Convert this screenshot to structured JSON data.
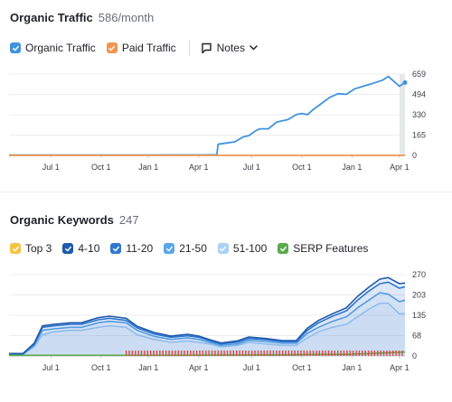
{
  "traffic": {
    "title": "Organic Traffic",
    "value": "586/month",
    "legend": [
      {
        "label": "Organic Traffic",
        "color": "#3f93dc",
        "checked": true
      },
      {
        "label": "Paid Traffic",
        "color": "#f0944f",
        "checked": true
      }
    ],
    "notes_label": "Notes",
    "chart_data": {
      "type": "line",
      "x_tick_labels": [
        "Jul 1",
        "Oct 1",
        "Jan 1",
        "Apr 1",
        "Jul 1",
        "Oct 1",
        "Jan 1",
        "Apr 1"
      ],
      "y_tick_labels": [
        "659",
        "494",
        "330",
        "165",
        "0"
      ],
      "ylim": [
        0,
        659
      ],
      "grid": true,
      "series": [
        {
          "name": "Organic Traffic",
          "color": "#3f93dc",
          "points": [
            [
              0,
              3
            ],
            [
              1,
              3
            ],
            [
              2,
              3
            ],
            [
              3,
              3
            ],
            [
              4,
              3
            ],
            [
              5,
              3
            ],
            [
              6,
              4
            ],
            [
              7,
              4
            ],
            [
              7.45,
              5
            ],
            [
              7.5,
              90
            ],
            [
              7.8,
              100
            ],
            [
              8.1,
              110
            ],
            [
              8.4,
              150
            ],
            [
              8.6,
              160
            ],
            [
              8.85,
              200
            ],
            [
              9.0,
              215
            ],
            [
              9.3,
              215
            ],
            [
              9.6,
              270
            ],
            [
              10.0,
              290
            ],
            [
              10.3,
              330
            ],
            [
              10.5,
              340
            ],
            [
              10.7,
              330
            ],
            [
              10.9,
              370
            ],
            [
              11.2,
              420
            ],
            [
              11.5,
              470
            ],
            [
              11.8,
              500
            ],
            [
              12.1,
              495
            ],
            [
              12.4,
              540
            ],
            [
              12.7,
              560
            ],
            [
              13.0,
              580
            ],
            [
              13.4,
              610
            ],
            [
              13.6,
              640
            ],
            [
              13.8,
              600
            ],
            [
              14.0,
              560
            ],
            [
              14.2,
              590
            ]
          ]
        },
        {
          "name": "Paid Traffic",
          "color": "#f0944f",
          "points": [
            [
              0,
              0
            ],
            [
              14.2,
              0
            ]
          ]
        }
      ]
    }
  },
  "keywords": {
    "title": "Organic Keywords",
    "value": "247",
    "legend": [
      {
        "label": "Top 3",
        "color": "#f6c343",
        "checked": false
      },
      {
        "label": "4-10",
        "color": "#1f5aad",
        "checked": true
      },
      {
        "label": "11-20",
        "color": "#2f79d3",
        "checked": true
      },
      {
        "label": "21-50",
        "color": "#5aa6ea",
        "checked": true
      },
      {
        "label": "51-100",
        "color": "#a9d1f5",
        "checked": true
      },
      {
        "label": "SERP Features",
        "color": "#5aa94c",
        "checked": true
      }
    ],
    "chart_data": {
      "type": "area",
      "stacked": true,
      "x_tick_labels": [
        "Jul 1",
        "Oct 1",
        "Jan 1",
        "Apr 1",
        "Jul 1",
        "Oct 1",
        "Jan 1",
        "Apr 1"
      ],
      "y_tick_labels": [
        "270",
        "203",
        "135",
        "68",
        "0"
      ],
      "ylim": [
        0,
        270
      ],
      "grid": true,
      "series": [
        {
          "name": "51-100",
          "color": "#a9d1f5",
          "points": [
            [
              0,
              5
            ],
            [
              0.5,
              5
            ],
            [
              0.9,
              30
            ],
            [
              1.2,
              70
            ],
            [
              1.6,
              80
            ],
            [
              2.2,
              85
            ],
            [
              2.6,
              85
            ],
            [
              3.2,
              95
            ],
            [
              3.6,
              100
            ],
            [
              4.2,
              95
            ],
            [
              4.6,
              70
            ],
            [
              5.2,
              55
            ],
            [
              5.8,
              45
            ],
            [
              6.4,
              50
            ],
            [
              6.8,
              45
            ],
            [
              7.2,
              40
            ],
            [
              7.6,
              30
            ],
            [
              8.2,
              35
            ],
            [
              8.6,
              45
            ],
            [
              9.2,
              40
            ],
            [
              9.8,
              35
            ],
            [
              10.3,
              35
            ],
            [
              10.7,
              60
            ],
            [
              11.1,
              80
            ],
            [
              11.6,
              95
            ],
            [
              12.1,
              105
            ],
            [
              12.5,
              130
            ],
            [
              12.9,
              155
            ],
            [
              13.3,
              175
            ],
            [
              13.6,
              175
            ],
            [
              14.0,
              140
            ],
            [
              14.2,
              140
            ]
          ]
        },
        {
          "name": "21-50",
          "color": "#5aa6ea",
          "points": [
            [
              0,
              6
            ],
            [
              0.5,
              6
            ],
            [
              0.9,
              35
            ],
            [
              1.2,
              85
            ],
            [
              1.6,
              90
            ],
            [
              2.2,
              95
            ],
            [
              2.6,
              95
            ],
            [
              3.2,
              110
            ],
            [
              3.6,
              115
            ],
            [
              4.2,
              110
            ],
            [
              4.6,
              85
            ],
            [
              5.2,
              65
            ],
            [
              5.8,
              55
            ],
            [
              6.4,
              60
            ],
            [
              6.8,
              55
            ],
            [
              7.2,
              45
            ],
            [
              7.6,
              35
            ],
            [
              8.2,
              40
            ],
            [
              8.6,
              52
            ],
            [
              9.2,
              48
            ],
            [
              9.8,
              42
            ],
            [
              10.3,
              42
            ],
            [
              10.7,
              75
            ],
            [
              11.1,
              95
            ],
            [
              11.6,
              115
            ],
            [
              12.1,
              130
            ],
            [
              12.5,
              160
            ],
            [
              12.9,
              185
            ],
            [
              13.3,
              210
            ],
            [
              13.6,
              205
            ],
            [
              14.0,
              180
            ],
            [
              14.2,
              185
            ]
          ]
        },
        {
          "name": "11-20",
          "color": "#2f79d3",
          "points": [
            [
              0,
              7
            ],
            [
              0.5,
              7
            ],
            [
              0.9,
              40
            ],
            [
              1.2,
              95
            ],
            [
              1.6,
              100
            ],
            [
              2.2,
              105
            ],
            [
              2.6,
              105
            ],
            [
              3.2,
              120
            ],
            [
              3.6,
              125
            ],
            [
              4.2,
              118
            ],
            [
              4.6,
              93
            ],
            [
              5.2,
              73
            ],
            [
              5.8,
              62
            ],
            [
              6.4,
              67
            ],
            [
              6.8,
              62
            ],
            [
              7.2,
              50
            ],
            [
              7.6,
              40
            ],
            [
              8.2,
              46
            ],
            [
              8.6,
              58
            ],
            [
              9.2,
              54
            ],
            [
              9.8,
              47
            ],
            [
              10.3,
              47
            ],
            [
              10.7,
              85
            ],
            [
              11.1,
              110
            ],
            [
              11.6,
              132
            ],
            [
              12.1,
              150
            ],
            [
              12.5,
              185
            ],
            [
              12.9,
              215
            ],
            [
              13.3,
              240
            ],
            [
              13.6,
              245
            ],
            [
              14.0,
              225
            ],
            [
              14.2,
              230
            ]
          ]
        },
        {
          "name": "4-10",
          "color": "#1f5aad",
          "points": [
            [
              0,
              8
            ],
            [
              0.5,
              8
            ],
            [
              0.9,
              42
            ],
            [
              1.2,
              100
            ],
            [
              1.6,
              105
            ],
            [
              2.2,
              110
            ],
            [
              2.6,
              110
            ],
            [
              3.2,
              127
            ],
            [
              3.6,
              132
            ],
            [
              4.2,
              125
            ],
            [
              4.6,
              98
            ],
            [
              5.2,
              78
            ],
            [
              5.8,
              66
            ],
            [
              6.4,
              72
            ],
            [
              6.8,
              66
            ],
            [
              7.2,
              54
            ],
            [
              7.6,
              43
            ],
            [
              8.2,
              50
            ],
            [
              8.6,
              63
            ],
            [
              9.2,
              58
            ],
            [
              9.8,
              51
            ],
            [
              10.3,
              51
            ],
            [
              10.7,
              92
            ],
            [
              11.1,
              118
            ],
            [
              11.6,
              140
            ],
            [
              12.1,
              160
            ],
            [
              12.5,
              198
            ],
            [
              12.9,
              228
            ],
            [
              13.3,
              255
            ],
            [
              13.6,
              260
            ],
            [
              14.0,
              240
            ],
            [
              14.2,
              242
            ]
          ]
        },
        {
          "name": "SERP Features",
          "color": "#5aa94c",
          "points": [
            [
              0,
              2
            ],
            [
              2,
              2
            ],
            [
              4,
              2
            ],
            [
              6,
              2
            ],
            [
              8,
              3
            ],
            [
              10,
              4
            ],
            [
              11,
              5
            ],
            [
              12,
              5
            ],
            [
              13,
              8
            ],
            [
              14,
              12
            ],
            [
              14.2,
              13
            ]
          ]
        }
      ]
    }
  }
}
